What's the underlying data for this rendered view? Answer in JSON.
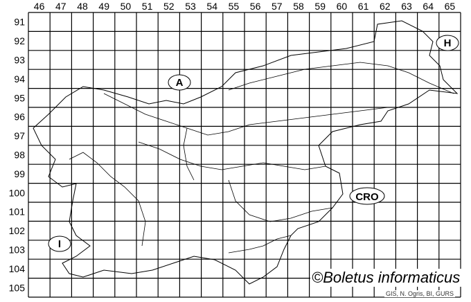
{
  "map": {
    "columns": [
      "46",
      "47",
      "48",
      "49",
      "50",
      "51",
      "52",
      "53",
      "54",
      "55",
      "56",
      "57",
      "58",
      "59",
      "60",
      "61",
      "62",
      "63",
      "64",
      "65"
    ],
    "rows": [
      "91",
      "92",
      "93",
      "94",
      "95",
      "96",
      "97",
      "98",
      "99",
      "100",
      "101",
      "102",
      "103",
      "104",
      "105"
    ],
    "country_labels": {
      "austria": "A",
      "hungary": "H",
      "croatia": "CRO",
      "italy": "I"
    },
    "copyright": "©Boletus informaticus",
    "credit": "GIS, N. Ogris, BI, GURS"
  }
}
